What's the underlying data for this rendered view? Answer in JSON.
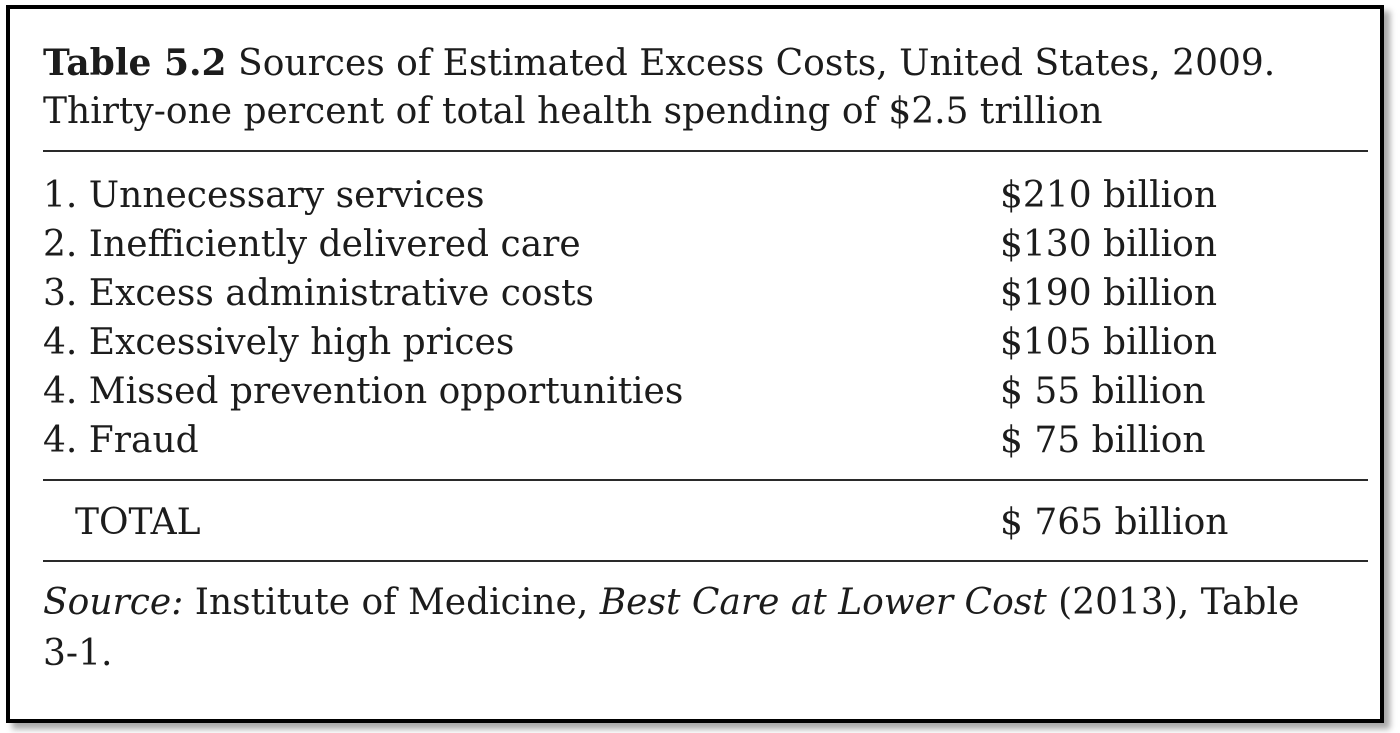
{
  "table": {
    "label": "Table 5.2",
    "title_line1": "Sources of Estimated Excess Costs, United States, 2009.",
    "title_line2": "Thirty-one percent of total health spending of $2.5 trillion",
    "rows": [
      {
        "label": "1. Unnecessary services",
        "amount": "$210 billion"
      },
      {
        "label": "2. Inefficiently delivered care",
        "amount": "$130 billion"
      },
      {
        "label": "3. Excess administrative costs",
        "amount": "$190 billion"
      },
      {
        "label": "4. Excessively high prices",
        "amount": "$105 billion"
      },
      {
        "label": "4. Missed prevention opportunities",
        "amount": "$ 55 billion"
      },
      {
        "label": "4. Fraud",
        "amount": "$ 75 billion"
      }
    ],
    "total": {
      "label": "TOTAL",
      "amount": "$ 765 billion"
    }
  },
  "source": {
    "label": "Source:",
    "text1": " Institute of Medicine, ",
    "work": "Best Care at Lower Cost",
    "text2": " (2013), Table 3-1."
  }
}
